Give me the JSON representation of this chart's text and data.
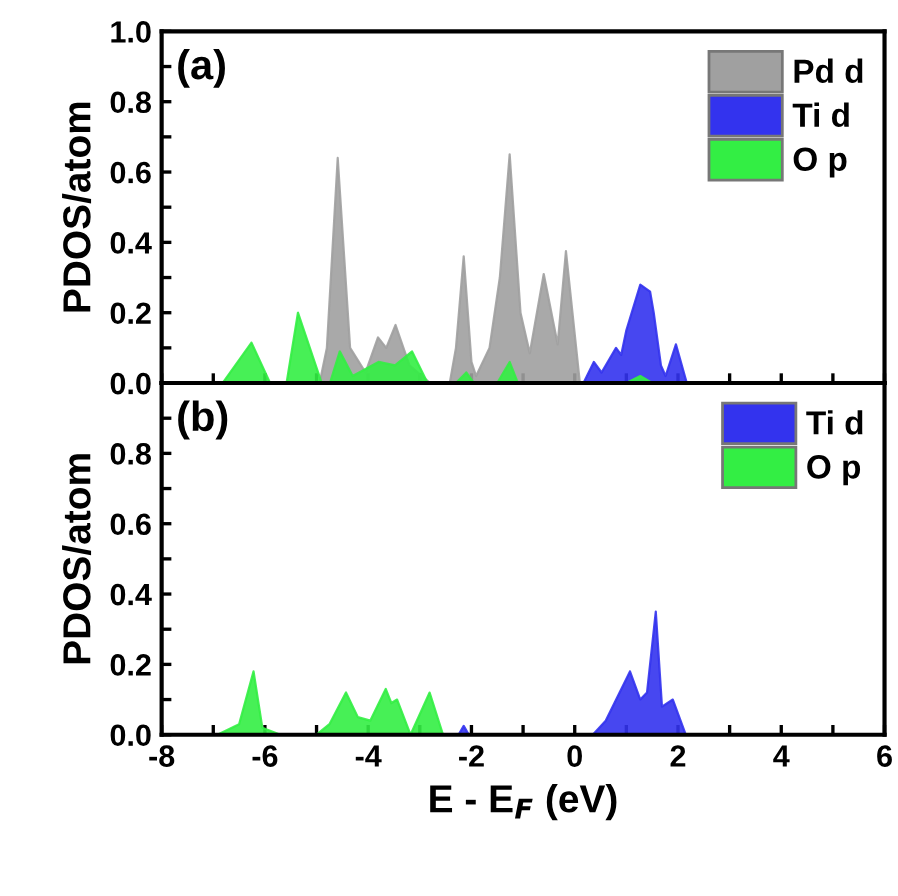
{
  "chart_data": [
    {
      "type": "area",
      "annotations": [
        "(a)"
      ],
      "ylabel": "PDOS/atom",
      "xlim": [
        -8,
        6
      ],
      "ylim": [
        0,
        1.0
      ],
      "xticks": [
        -8,
        {
          "value": -7,
          "label": null
        },
        -6,
        {
          "value": -5,
          "label": null
        },
        -4,
        {
          "value": -3,
          "label": null
        },
        -2,
        {
          "value": -1,
          "label": null
        },
        0,
        {
          "value": 1,
          "label": null
        },
        2,
        {
          "value": 3,
          "label": null
        },
        4,
        {
          "value": 5,
          "label": null
        },
        6
      ],
      "yticks": [
        {
          "value": 0,
          "label": "0.0"
        },
        {
          "value": 0.1,
          "label": null
        },
        {
          "value": 0.2,
          "label": "0.2"
        },
        {
          "value": 0.3,
          "label": null
        },
        {
          "value": 0.4,
          "label": "0.4"
        },
        {
          "value": 0.5,
          "label": null
        },
        {
          "value": 0.6,
          "label": "0.6"
        },
        {
          "value": 0.7,
          "label": null
        },
        {
          "value": 0.8,
          "label": "0.8"
        },
        {
          "value": 0.9,
          "label": null
        },
        {
          "value": 1.0,
          "label": "1.0"
        }
      ],
      "tick_labels": "y",
      "legend": "top right",
      "grid": false,
      "series": [
        {
          "name": "Pd d",
          "color": "#a0a0a0",
          "x": [
            -4.94,
            -4.8,
            -4.59,
            -4.35,
            -4.05,
            -3.81,
            -3.65,
            -3.47,
            -3.2,
            -2.8,
            -2.42,
            -2.3,
            -2.15,
            -2.0,
            -1.91,
            -1.65,
            -1.45,
            -1.26,
            -1.05,
            -0.87,
            -0.6,
            -0.33,
            -0.17,
            0.1
          ],
          "values": [
            0,
            0.1,
            0.64,
            0.1,
            0.03,
            0.13,
            0.1,
            0.165,
            0.05,
            0,
            0,
            0.1,
            0.36,
            0.06,
            0.02,
            0.1,
            0.3,
            0.65,
            0.2,
            0.085,
            0.31,
            0.11,
            0.375,
            0
          ]
        },
        {
          "name": "Ti d",
          "color": "#3333ee",
          "x": [
            0.17,
            0.37,
            0.52,
            0.8,
            0.9,
            1.0,
            1.27,
            1.46,
            1.53,
            1.67,
            1.76,
            1.96,
            2.17
          ],
          "values": [
            0,
            0.06,
            0.03,
            0.1,
            0.08,
            0.15,
            0.28,
            0.26,
            0.2,
            0.05,
            0.02,
            0.11,
            0
          ]
        },
        {
          "name": "O p",
          "color": "#33ee44",
          "x": [
            -6.82,
            -6.26,
            -5.9,
            -5.58,
            -5.36,
            -4.9,
            -4.74,
            -4.55,
            -4.3,
            -3.8,
            -3.48,
            -3.15,
            -2.85,
            -2.3,
            -2.1,
            -1.95,
            -1.5,
            -1.26,
            -1.1,
            1.0,
            1.27,
            1.5
          ],
          "values": [
            0,
            0.115,
            0,
            0,
            0.2,
            0,
            0,
            0.09,
            0.02,
            0.06,
            0.05,
            0.09,
            0,
            0,
            0.03,
            0,
            0,
            0.06,
            0,
            0,
            0.02,
            0
          ]
        }
      ]
    },
    {
      "type": "area",
      "annotations": [
        "(b)"
      ],
      "ylabel": "PDOS/atom",
      "xlabel": "E - E$_{F}$ (eV)",
      "xlim": [
        -8,
        6
      ],
      "ylim": [
        0,
        1.0
      ],
      "xticks": [
        -8,
        {
          "value": -7,
          "label": null
        },
        -6,
        {
          "value": -5,
          "label": null
        },
        -4,
        {
          "value": -3,
          "label": null
        },
        -2,
        {
          "value": -1,
          "label": null
        },
        0,
        {
          "value": 1,
          "label": null
        },
        2,
        {
          "value": 3,
          "label": null
        },
        4,
        {
          "value": 5,
          "label": null
        },
        6
      ],
      "yticks": [
        {
          "value": 0,
          "label": "0.0"
        },
        {
          "value": 0.1,
          "label": null
        },
        {
          "value": 0.2,
          "label": "0.2"
        },
        {
          "value": 0.3,
          "label": null
        },
        {
          "value": 0.4,
          "label": "0.4"
        },
        {
          "value": 0.5,
          "label": null
        },
        {
          "value": 0.6,
          "label": "0.6"
        },
        {
          "value": 0.7,
          "label": null
        },
        {
          "value": 0.8,
          "label": "0.8"
        },
        {
          "value": 0.9,
          "label": null
        }
      ],
      "legend": "top right",
      "grid": false,
      "series": [
        {
          "name": "Ti d",
          "color": "#3333ee",
          "x": [
            -2.25,
            -2.15,
            -2.05,
            0.35,
            0.6,
            1.07,
            1.27,
            1.4,
            1.57,
            1.69,
            1.9,
            2.15
          ],
          "values": [
            0,
            0.025,
            0,
            0,
            0.04,
            0.18,
            0.1,
            0.12,
            0.35,
            0.08,
            0.1,
            0
          ]
        },
        {
          "name": "O p",
          "color": "#33ee44",
          "x": [
            -6.92,
            -6.5,
            -6.22,
            -6.05,
            -5.7,
            -5.0,
            -4.75,
            -4.43,
            -4.2,
            -3.96,
            -3.66,
            -3.55,
            -3.44,
            -3.18,
            -2.81,
            -2.55
          ],
          "values": [
            0,
            0.03,
            0.18,
            0.02,
            0,
            0,
            0.03,
            0.12,
            0.05,
            0.04,
            0.13,
            0.09,
            0.1,
            0,
            0.12,
            0
          ]
        }
      ]
    }
  ]
}
